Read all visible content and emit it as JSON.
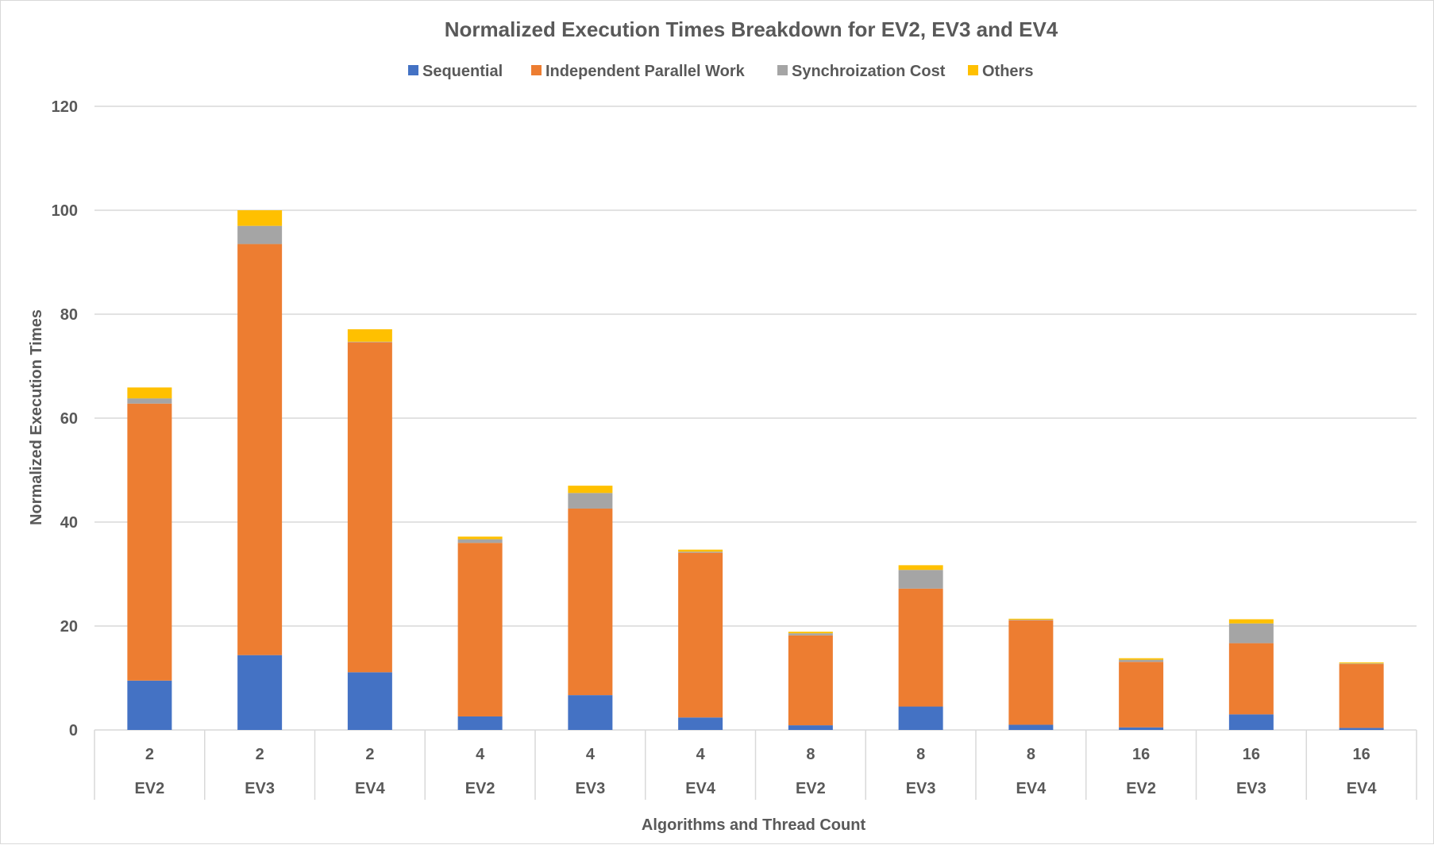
{
  "chart_data": {
    "type": "bar",
    "stacked": true,
    "title": "Normalized Execution Times Breakdown for EV2, EV3 and EV4",
    "xlabel": "Algorithms and Thread Count",
    "ylabel": "Normalized Execution Times",
    "ylim": [
      0,
      120
    ],
    "yticks": [
      0,
      20,
      40,
      60,
      80,
      100,
      120
    ],
    "grid": true,
    "legend_position": "top",
    "categories": [
      {
        "threads": "2",
        "algorithm": "EV2"
      },
      {
        "threads": "2",
        "algorithm": "EV3"
      },
      {
        "threads": "2",
        "algorithm": "EV4"
      },
      {
        "threads": "4",
        "algorithm": "EV2"
      },
      {
        "threads": "4",
        "algorithm": "EV3"
      },
      {
        "threads": "4",
        "algorithm": "EV4"
      },
      {
        "threads": "8",
        "algorithm": "EV2"
      },
      {
        "threads": "8",
        "algorithm": "EV3"
      },
      {
        "threads": "8",
        "algorithm": "EV4"
      },
      {
        "threads": "16",
        "algorithm": "EV2"
      },
      {
        "threads": "16",
        "algorithm": "EV3"
      },
      {
        "threads": "16",
        "algorithm": "EV4"
      }
    ],
    "series": [
      {
        "name": "Sequential",
        "color": "#4472C4",
        "values": [
          9.5,
          14.4,
          11.1,
          2.6,
          6.7,
          2.4,
          0.9,
          4.5,
          1.0,
          0.5,
          3.0,
          0.4
        ]
      },
      {
        "name": "Independent Parallel Work",
        "color": "#ED7D31",
        "values": [
          53.3,
          79.1,
          63.5,
          33.4,
          35.9,
          31.7,
          17.3,
          22.7,
          20.1,
          12.6,
          13.7,
          12.3
        ]
      },
      {
        "name": "Synchroization Cost",
        "color": "#A5A5A5",
        "values": [
          1.0,
          3.5,
          0.1,
          0.7,
          3.0,
          0.2,
          0.4,
          3.6,
          0.1,
          0.4,
          3.8,
          0.1
        ]
      },
      {
        "name": "Others",
        "color": "#FFC000",
        "values": [
          2.1,
          3.0,
          2.4,
          0.5,
          1.4,
          0.4,
          0.3,
          0.9,
          0.2,
          0.3,
          0.8,
          0.2
        ]
      }
    ]
  }
}
